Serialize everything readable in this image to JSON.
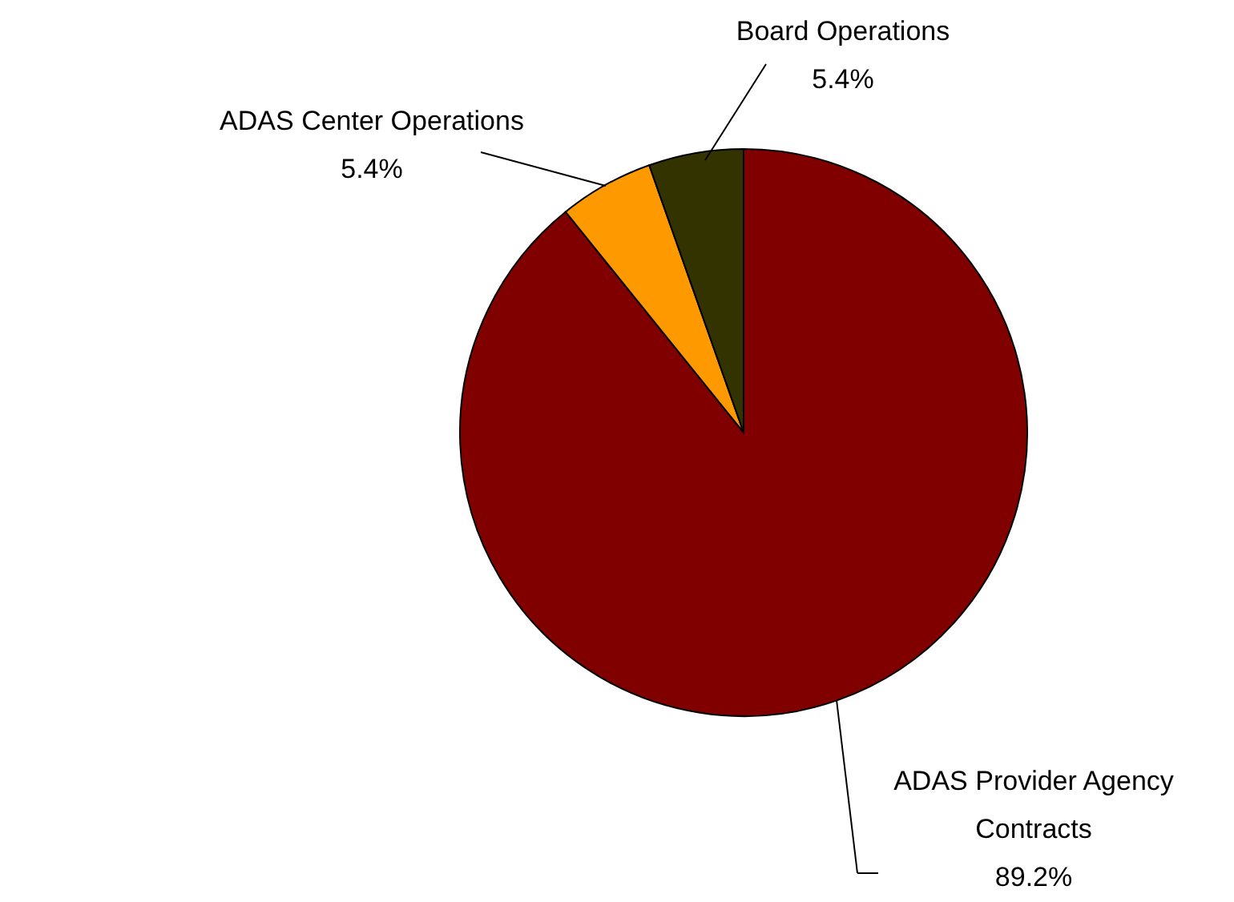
{
  "chart_data": {
    "type": "pie",
    "categories": [
      "ADAS Provider Agency Contracts",
      "ADAS Center Operations",
      "Board Operations"
    ],
    "values": [
      89.2,
      5.4,
      5.4
    ],
    "colors": [
      "#800000",
      "#ff9900",
      "#333300"
    ],
    "value_labels": [
      "89.2%",
      "5.4%",
      "5.4%"
    ]
  }
}
